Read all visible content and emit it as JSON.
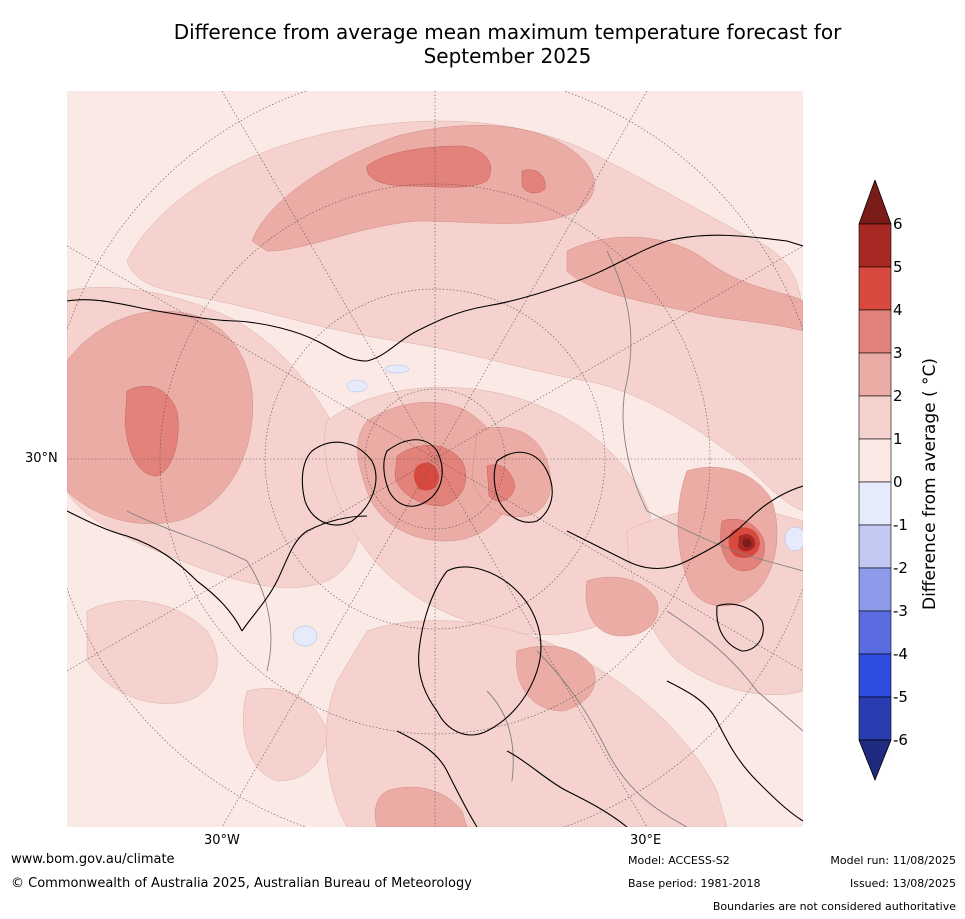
{
  "title_line1": "Difference from average mean maximum temperature forecast for",
  "title_line2": "September 2025",
  "map": {
    "lat_label": "30°N",
    "lon_label_left": "30°W",
    "lon_label_right": "30°E",
    "colors": {
      "ocean_base": "#fbe9e6",
      "bin_1_2": "#f5d2cd",
      "bin_2_3": "#ecaca6",
      "bin_3_4": "#e2827a",
      "bin_4_5": "#d84a40",
      "bin_5_6": "#a82823",
      "bin_gt6": "#7a1d18",
      "bin_0_m1": "#e6ebfb",
      "coastline": "#000000",
      "border": "#808080"
    }
  },
  "colorbar": {
    "label": "Difference from average ($^\\circ$C)",
    "label_text": "Difference from average ( °C)",
    "ticks": [
      "6",
      "5",
      "4",
      "3",
      "2",
      "1",
      "0",
      "-1",
      "-2",
      "-3",
      "-4",
      "-5",
      "-6"
    ],
    "colors": [
      "#a82823",
      "#d84a40",
      "#e2827a",
      "#ecaca6",
      "#f5d2cd",
      "#fbe9e6",
      "#e6ebfb",
      "#c1c9f2",
      "#8d9ae9",
      "#5b6ce1",
      "#2e4de0",
      "#2a3db0"
    ],
    "over_color": "#7a1d18",
    "under_color": "#1f2a80"
  },
  "footer": {
    "website": "www.bom.gov.au/climate",
    "copyright": "© Commonwealth of Australia 2025, Australian Bureau of Meteorology",
    "model": "Model: ACCESS-S2",
    "base_period": "Base period: 1981-2018",
    "model_run": "Model run: 11/08/2025",
    "issued": "Issued: 13/08/2025",
    "disclaimer": "Boundaries are not considered authoritative"
  }
}
